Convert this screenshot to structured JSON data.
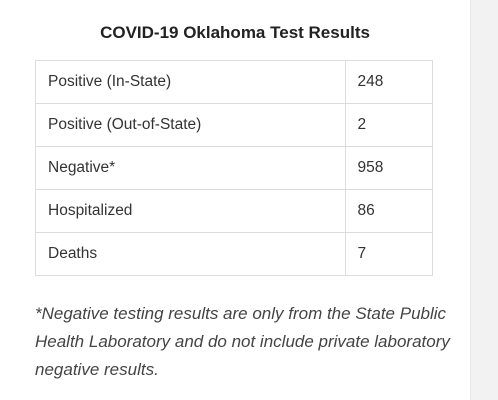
{
  "table": {
    "title": "COVID-19 Oklahoma Test Results",
    "rows": [
      {
        "label": "Positive (In-State)",
        "value": "248"
      },
      {
        "label": "Positive (Out-of-State)",
        "value": "2"
      },
      {
        "label": "Negative*",
        "value": "958"
      },
      {
        "label": "Hospitalized",
        "value": "86"
      },
      {
        "label": "Deaths",
        "value": "7"
      }
    ]
  },
  "footnote": "*Negative testing results are only from the State Public Health Laboratory and do not include private laboratory negative results."
}
